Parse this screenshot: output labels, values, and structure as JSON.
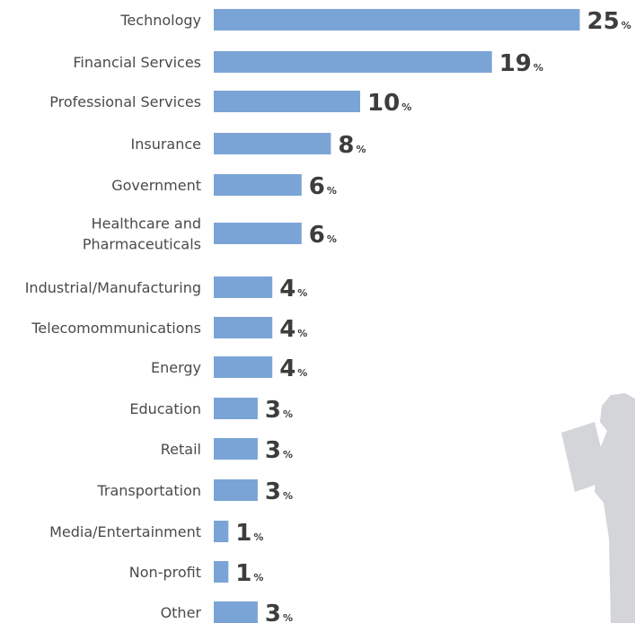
{
  "chart_data": {
    "type": "bar",
    "orientation": "horizontal",
    "categories": [
      "Technology",
      "Financial Services",
      "Professional Services",
      "Insurance",
      "Government",
      "Healthcare and Pharmaceuticals",
      "Industrial/Manufacturing",
      "Telecomommunications",
      "Energy",
      "Education",
      "Retail",
      "Transportation",
      "Media/Entertainment",
      "Non-profit",
      "Other"
    ],
    "category_lines": [
      [
        "Technology"
      ],
      [
        "Financial Services"
      ],
      [
        "Professional Services"
      ],
      [
        "Insurance"
      ],
      [
        "Government"
      ],
      [
        "Healthcare and",
        "Pharmaceuticals"
      ],
      [
        "Industrial/Manufacturing"
      ],
      [
        "Telecomommunications"
      ],
      [
        "Energy"
      ],
      [
        "Education"
      ],
      [
        "Retail"
      ],
      [
        "Transportation"
      ],
      [
        "Media/Entertainment"
      ],
      [
        "Non-profit"
      ],
      [
        "Other"
      ]
    ],
    "values": [
      25,
      19,
      10,
      8,
      6,
      6,
      4,
      4,
      4,
      3,
      3,
      3,
      1,
      1,
      3
    ],
    "value_labels": [
      "25",
      "19",
      "10",
      "8",
      "6",
      "6",
      "4",
      "4",
      "4",
      "3",
      "3",
      "3",
      "1",
      "1",
      "3"
    ],
    "unit_suffix": "%",
    "title": "",
    "xlabel": "",
    "ylabel": "",
    "grid": false,
    "legend": "none"
  },
  "colors": {
    "bar": "#7ba4d6",
    "label_text": "#4a4a4a",
    "value_text": "#3d3d3d",
    "figure_silhouette": "#d3d5d8"
  },
  "decoration": {
    "icon": "person-reading-silhouette-icon"
  }
}
